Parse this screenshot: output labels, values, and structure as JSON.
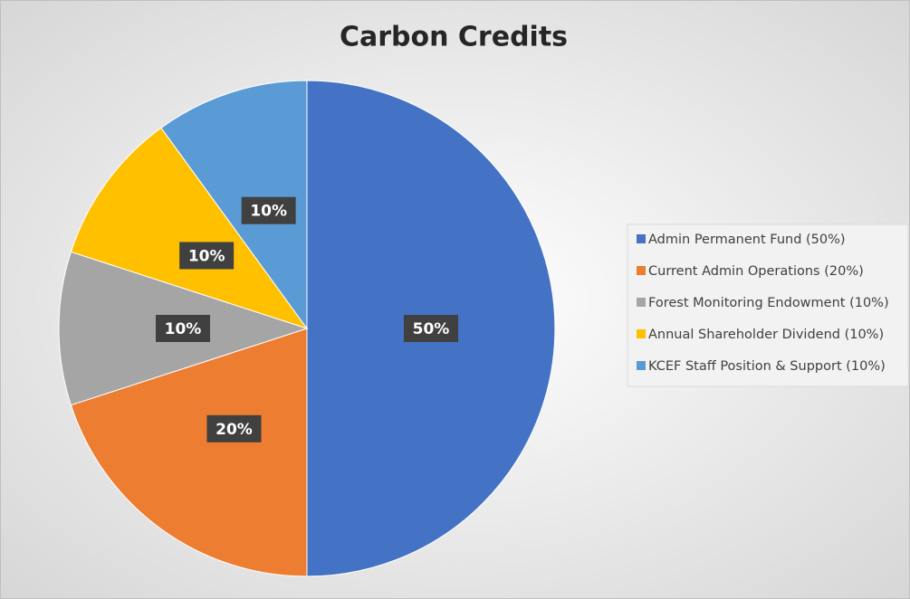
{
  "chart_data": {
    "type": "pie",
    "title": "Carbon Credits",
    "categories": [
      "Admin Permanent Fund (50%)",
      "Current Admin Operations (20%)",
      "Forest Monitoring Endowment (10%)",
      "Annual Shareholder Dividend (10%)",
      "KCEF Staff Position & Support (10%)"
    ],
    "values": [
      50,
      20,
      10,
      10,
      10
    ],
    "value_labels": [
      "50%",
      "20%",
      "10%",
      "10%",
      "10%"
    ],
    "colors": [
      "#4472c4",
      "#ed7d31",
      "#a5a5a5",
      "#ffc000",
      "#5b9bd5"
    ],
    "legend": "right"
  }
}
